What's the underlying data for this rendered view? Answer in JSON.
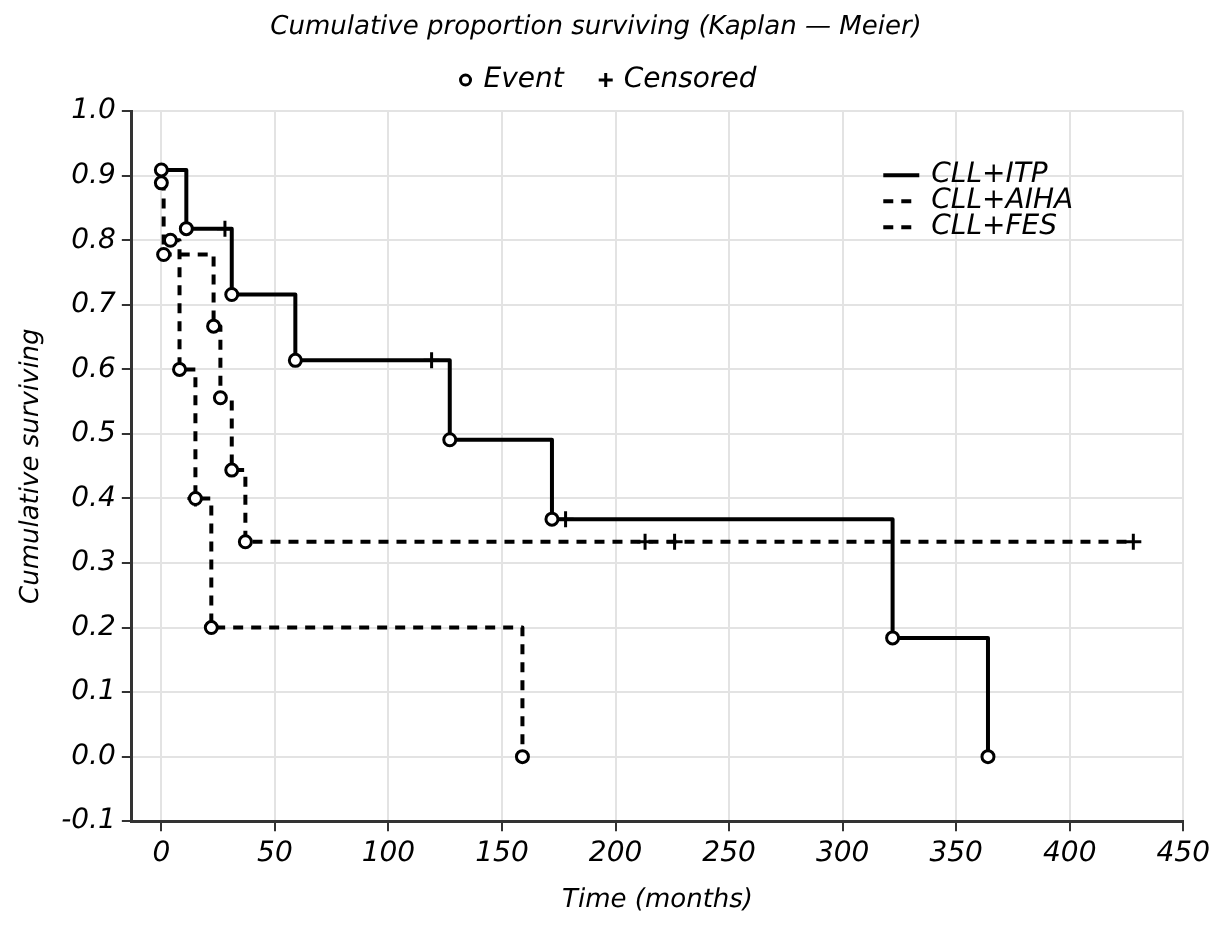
{
  "chart_data": {
    "type": "step",
    "title": "Cumulative proportion surviving (Kaplan — Meier)",
    "xlabel": "Time (months)",
    "ylabel": "Cumulative surviving",
    "xlim": [
      -13,
      450
    ],
    "xticks": [
      0,
      50,
      100,
      150,
      200,
      250,
      300,
      350,
      400,
      450
    ],
    "ylim": [
      -0.1,
      1.0
    ],
    "yticks": [
      {
        "value": -0.1,
        "label": "-0.1"
      },
      {
        "value": 0,
        "label": "0.0"
      },
      0.1,
      0.2,
      0.3,
      0.4,
      0.5,
      0.6,
      0.7,
      0.8,
      0.9,
      {
        "value": 1,
        "label": "1.0"
      }
    ],
    "grid": true,
    "legend": "top right",
    "marker": "none",
    "series": [
      {
        "name": "CLL+ITP",
        "color": "#000000",
        "line_style": "solid",
        "x": [
          0,
          11,
          31,
          59,
          127,
          172,
          322,
          364
        ],
        "values": [
          0.909,
          0.818,
          0.716,
          0.614,
          0.491,
          0.368,
          0.184,
          0
        ]
      },
      {
        "name": "CLL+AIHA",
        "color": "#000000",
        "line_style": "dashed",
        "x": [
          0,
          1,
          23,
          26,
          31,
          37,
          428
        ],
        "values": [
          0.889,
          0.778,
          0.667,
          0.556,
          0.444,
          0.333,
          0.333
        ]
      },
      {
        "name": "CLL+FES",
        "color": "#000000",
        "line_style": "dashed",
        "x": [
          4,
          8,
          15,
          22,
          159
        ],
        "values": [
          0.8,
          0.6,
          0.4,
          0.2,
          0
        ]
      },
      {
        "name": "Event",
        "type": "scatter",
        "marker": "circle",
        "color": "#000000",
        "x": [
          0,
          11,
          31,
          59,
          127,
          172,
          322,
          364,
          0,
          1,
          23,
          26,
          31,
          37,
          4,
          8,
          15,
          22,
          159
        ],
        "values": [
          0.909,
          0.818,
          0.716,
          0.614,
          0.491,
          0.368,
          0.184,
          0,
          0.889,
          0.778,
          0.667,
          0.556,
          0.444,
          0.333,
          0.8,
          0.6,
          0.4,
          0.2,
          0
        ]
      },
      {
        "name": "Censored",
        "type": "scatter",
        "marker": "cross",
        "color": "#000000",
        "x": [
          28,
          119,
          178,
          213,
          226,
          428,
          15
        ],
        "values": [
          0.818,
          0.614,
          0.368,
          0.333,
          0.333,
          0.333,
          0.4
        ]
      }
    ]
  }
}
